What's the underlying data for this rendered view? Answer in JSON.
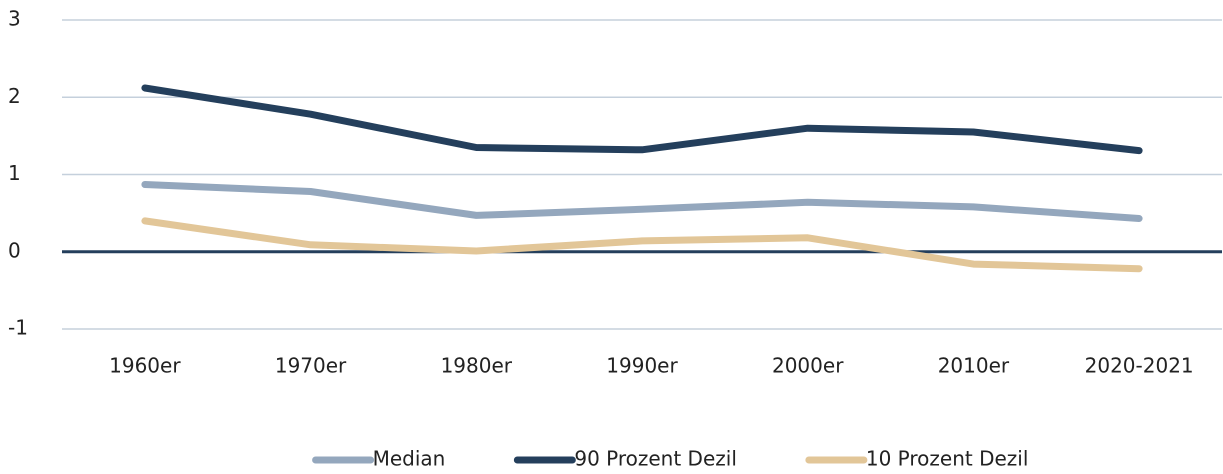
{
  "chart_data": {
    "type": "line",
    "categories": [
      "1960er",
      "1970er",
      "1980er",
      "1990er",
      "2000er",
      "2010er",
      "2020-2021"
    ],
    "series": [
      {
        "name": "Median",
        "color": "#94a7bd",
        "values": [
          0.87,
          0.78,
          0.47,
          0.55,
          0.64,
          0.58,
          0.43
        ]
      },
      {
        "name": "90 Prozent Dezil",
        "color": "#243f5c",
        "values": [
          2.12,
          1.78,
          1.35,
          1.32,
          1.6,
          1.55,
          1.31
        ]
      },
      {
        "name": "10 Prozent Dezil",
        "color": "#e2c698",
        "values": [
          0.4,
          0.09,
          0.01,
          0.14,
          0.18,
          -0.16,
          -0.22
        ]
      }
    ],
    "ylim": [
      -1,
      3
    ],
    "yticks": [
      -1,
      0,
      1,
      2,
      3
    ],
    "grid": true,
    "legend": "bottom"
  }
}
